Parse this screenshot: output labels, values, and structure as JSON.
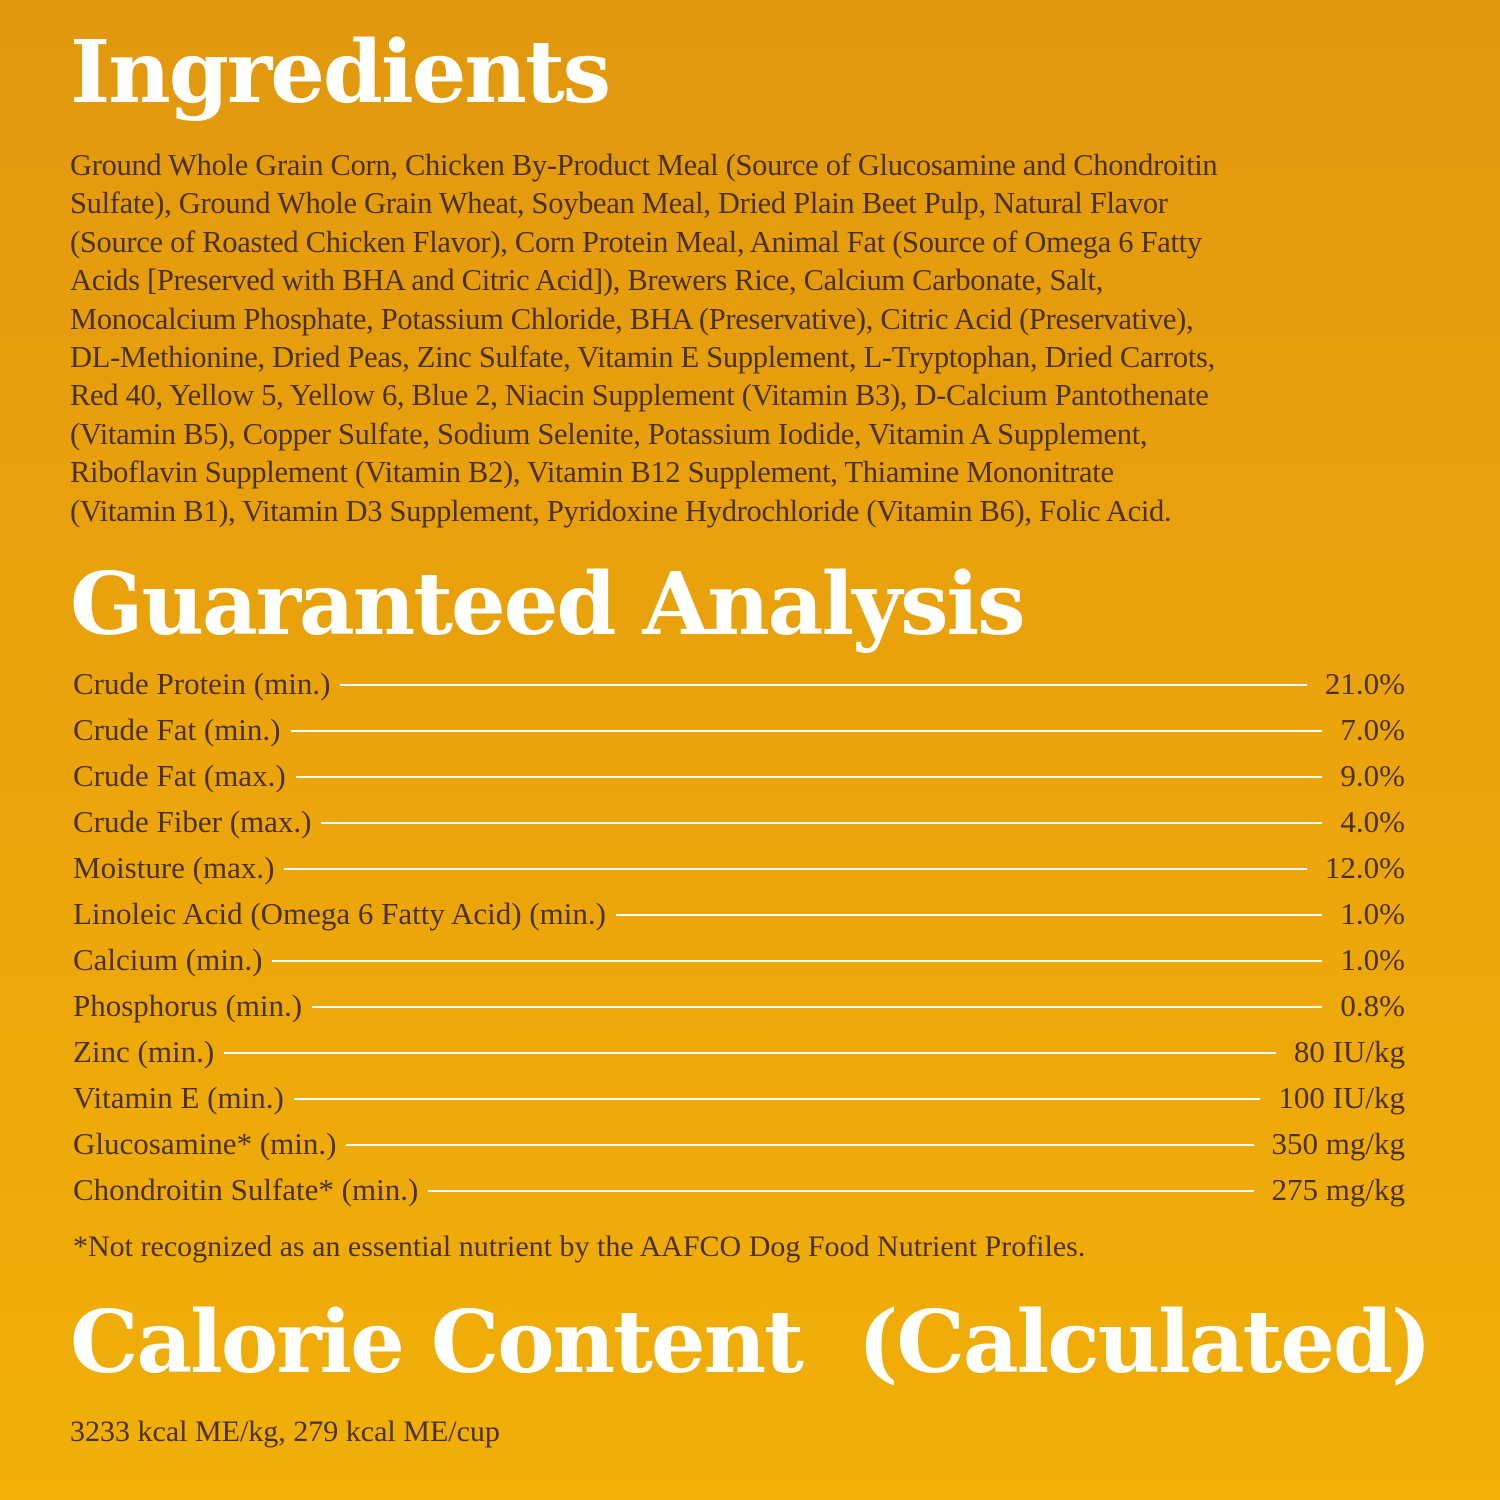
{
  "ingredients": {
    "title": "Ingredients",
    "lines": [
      "Ground Whole Grain Corn, Chicken By-Product Meal (Source of Glucosamine and Chondroitin",
      "Sulfate), Ground Whole Grain Wheat, Soybean Meal, Dried Plain Beet Pulp, Natural Flavor",
      "(Source of Roasted Chicken Flavor), Corn Protein Meal, Animal Fat (Source of Omega 6 Fatty",
      "Acids [Preserved with BHA and Citric Acid]), Brewers Rice, Calcium Carbonate, Salt,",
      "Monocalcium Phosphate, Potassium Chloride, BHA (Preservative), Citric Acid (Preservative),",
      "DL-Methionine, Dried Peas,  Zinc Sulfate, Vitamin E Supplement, L-Tryptophan, Dried Carrots,",
      "Red 40, Yellow 5, Yellow 6, Blue 2, Niacin Supplement (Vitamin B3), D-Calcium Pantothenate",
      "(Vitamin B5), Copper Sulfate, Sodium Selenite, Potassium Iodide, Vitamin A Supplement,",
      "Riboflavin Supplement (Vitamin B2), Vitamin B12 Supplement, Thiamine Mononitrate",
      "(Vitamin B1), Vitamin D3 Supplement, Pyridoxine Hydrochloride (Vitamin B6), Folic Acid."
    ]
  },
  "analysis": {
    "title": "Guaranteed Analysis",
    "rows": [
      {
        "label": "Crude Protein (min.)",
        "value": "21.0%"
      },
      {
        "label": "Crude Fat (min.)",
        "value": "7.0%"
      },
      {
        "label": "Crude Fat (max.)",
        "value": "9.0%"
      },
      {
        "label": "Crude Fiber (max.)",
        "value": "4.0%"
      },
      {
        "label": "Moisture (max.)",
        "value": "12.0%"
      },
      {
        "label": "Linoleic Acid (Omega 6 Fatty Acid) (min.)",
        "value": "1.0%"
      },
      {
        "label": "Calcium (min.)",
        "value": "1.0%"
      },
      {
        "label": "Phosphorus (min.)",
        "value": "0.8%"
      },
      {
        "label": "Zinc (min.)",
        "value": "80 IU/kg"
      },
      {
        "label": "Vitamin E (min.)",
        "value": "100 IU/kg"
      },
      {
        "label": "Glucosamine* (min.)",
        "value": "350 mg/kg"
      },
      {
        "label": "Chondroitin Sulfate* (min.)",
        "value": "275 mg/kg"
      }
    ],
    "footnote": "*Not recognized as an essential nutrient by the AAFCO Dog Food Nutrient Profiles."
  },
  "calorie": {
    "title": "Calorie Content  (Calculated)",
    "value": "3233 kcal ME/kg, 279 kcal ME/cup"
  },
  "colors": {
    "background_top": "#e2980e",
    "background_bottom": "#f1af08",
    "heading": "#ffffff",
    "text": "#4a3210"
  }
}
